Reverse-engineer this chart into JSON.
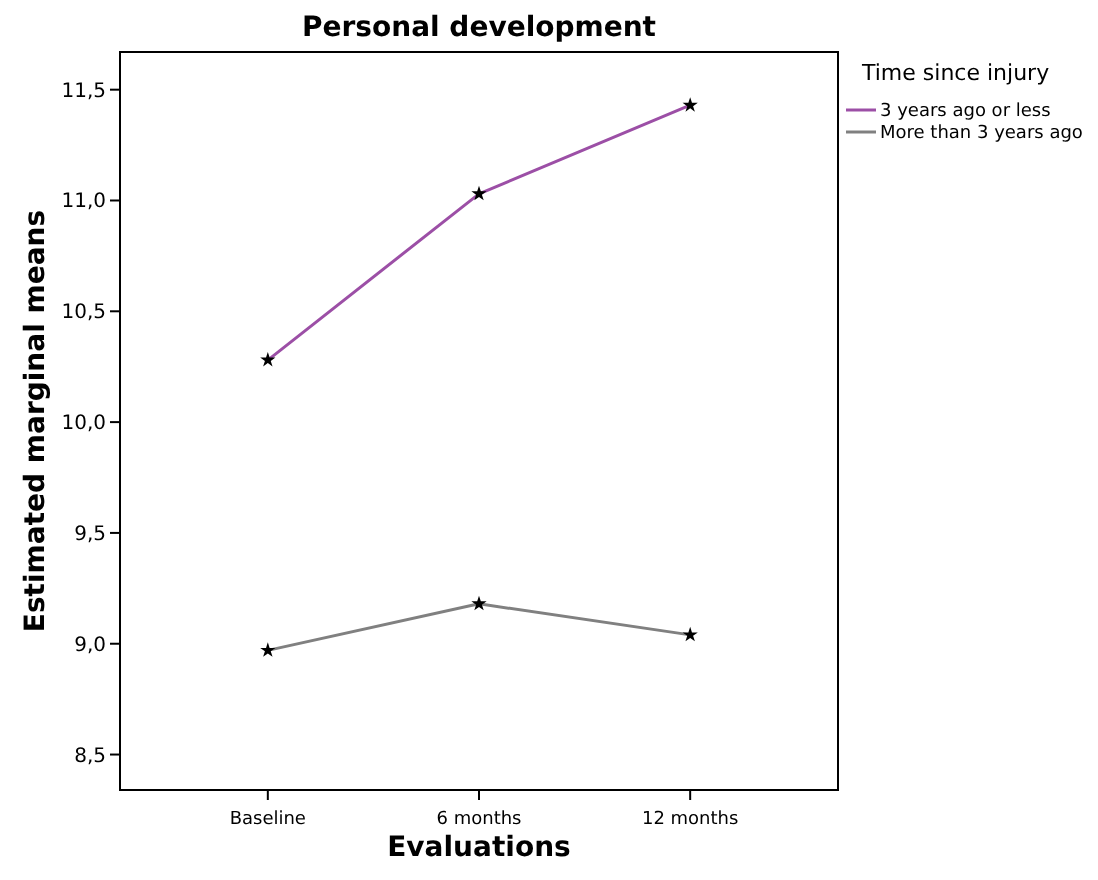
{
  "chart_data": {
    "type": "line",
    "title": "Personal development",
    "xlabel": "Evaluations",
    "ylabel": "Estimated marginal means",
    "legend_title": "Time since injury",
    "categories": [
      "Baseline",
      "6 months",
      "12 months"
    ],
    "series": [
      {
        "name": "3 years ago or less",
        "color": "#9c4fa6",
        "values": [
          10.28,
          11.03,
          11.43
        ]
      },
      {
        "name": "More than 3 years ago",
        "color": "#808080",
        "values": [
          8.97,
          9.18,
          9.04
        ]
      }
    ],
    "ylim": [
      8.34,
      11.67
    ],
    "yticks": [
      {
        "value": 8.5,
        "label": "8,5"
      },
      {
        "value": 9,
        "label": "9,0"
      },
      {
        "value": 9.5,
        "label": "9,5"
      },
      {
        "value": 10,
        "label": "10,0"
      },
      {
        "value": 10.5,
        "label": "10,5"
      },
      {
        "value": 11,
        "label": "11,0"
      },
      {
        "value": 11.5,
        "label": "11,5"
      }
    ],
    "marker": "star",
    "legend": "top right",
    "grid": false,
    "line_style": "solid"
  }
}
